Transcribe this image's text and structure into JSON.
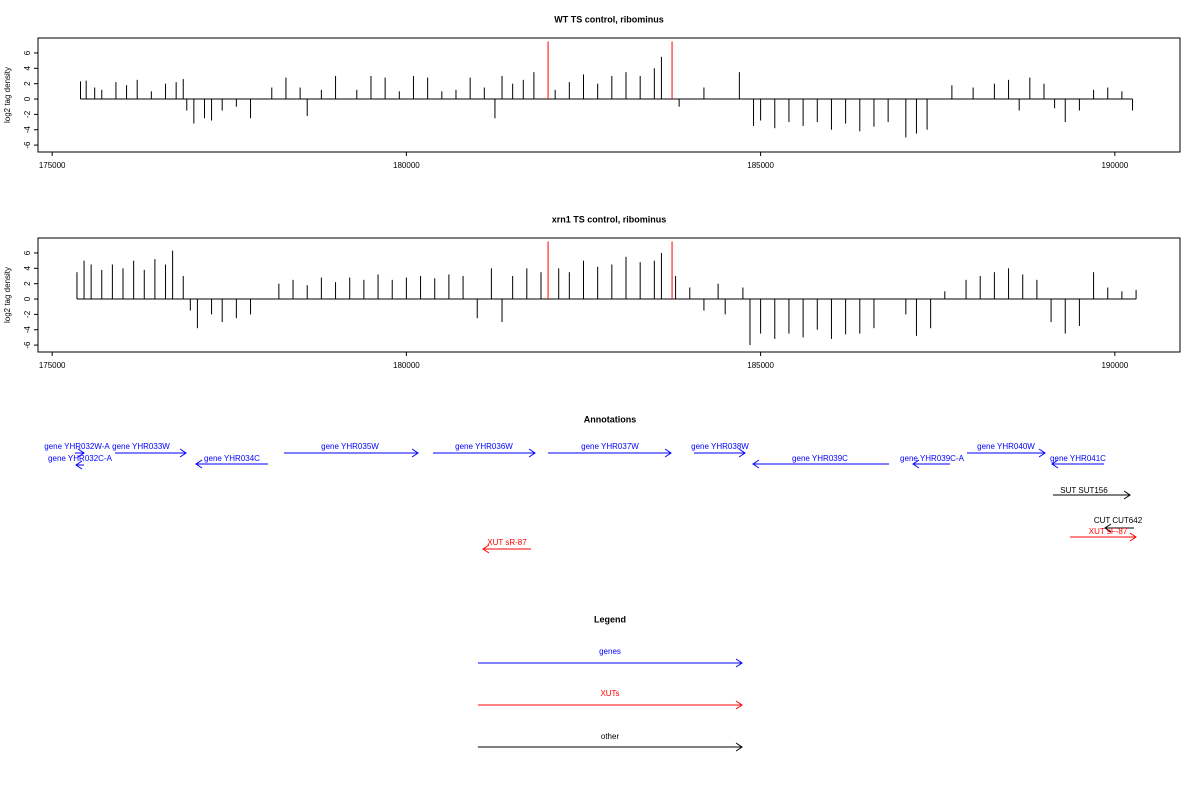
{
  "chart_data": [
    {
      "type": "bar",
      "title": "WT TS control, ribominus",
      "ylabel": "log2 tag density",
      "xlim": [
        174800,
        190920
      ],
      "xticks": [
        175000,
        180000,
        185000,
        190000
      ],
      "ylim": [
        -6.9,
        7.95
      ],
      "yticks": [
        -6,
        -4,
        -2,
        0,
        2,
        4,
        6
      ],
      "series": [
        {
          "color": "#000000",
          "x": [
            175400,
            175480,
            175600,
            175700,
            175900,
            176050,
            176200,
            176400,
            176600,
            176750,
            176850,
            176900,
            177000,
            177150,
            177250,
            177400,
            177600,
            177800,
            178100,
            178300,
            178500,
            178600,
            178800,
            179000,
            179300,
            179500,
            179700,
            179900,
            180100,
            180300,
            180500,
            180700,
            180900,
            181100,
            181250,
            181350,
            181500,
            181650,
            181800,
            182100,
            182300,
            182500,
            182700,
            182900,
            183100,
            183300,
            183500,
            183600,
            183850,
            184200,
            184700,
            184900,
            185000,
            185200,
            185400,
            185600,
            185800,
            186000,
            186200,
            186400,
            186600,
            186800,
            187050,
            187200,
            187350,
            187700,
            188000,
            188300,
            188500,
            188650,
            188800,
            189000,
            189150,
            189300,
            189500,
            189700,
            189900,
            190100,
            190250
          ],
          "values": [
            2.3,
            2.4,
            1.5,
            1.2,
            2.2,
            1.8,
            2.5,
            1,
            2,
            2.2,
            2.6,
            -1.5,
            -3.2,
            -2.5,
            -2.8,
            -1.5,
            -1,
            -2.5,
            1.5,
            2.8,
            1.5,
            -2.2,
            1.2,
            3,
            1.2,
            3,
            2.8,
            1,
            3,
            2.8,
            1,
            1.2,
            2.8,
            1.5,
            -2.5,
            3,
            2,
            2.5,
            3.5,
            1.2,
            2.2,
            3.2,
            2,
            3,
            3.5,
            3,
            4,
            5.5,
            -1,
            1.5,
            3.5,
            -3.5,
            -2.8,
            -3.8,
            -3,
            -3.5,
            -3,
            -4,
            -3.2,
            -4.2,
            -3.6,
            -3,
            -5,
            -4.5,
            -4,
            1.8,
            1.5,
            2,
            2.5,
            -1.5,
            2.8,
            2,
            -1.2,
            -3,
            -1.5,
            1.2,
            1.5,
            1,
            -1.5
          ]
        },
        {
          "color": "#ff0000",
          "x": [
            182000,
            183750
          ],
          "values": [
            7.5,
            7.5
          ]
        }
      ]
    },
    {
      "type": "bar",
      "title": "xrn1 TS control, ribominus",
      "ylabel": "log2 tag density",
      "xlim": [
        174800,
        190920
      ],
      "xticks": [
        175000,
        180000,
        185000,
        190000
      ],
      "ylim": [
        -6.9,
        7.95
      ],
      "yticks": [
        -6,
        -4,
        -2,
        0,
        2,
        4,
        6
      ],
      "series": [
        {
          "color": "#000000",
          "x": [
            175350,
            175450,
            175550,
            175700,
            175850,
            176000,
            176150,
            176300,
            176450,
            176600,
            176700,
            176850,
            176950,
            177050,
            177250,
            177400,
            177600,
            177800,
            178200,
            178400,
            178600,
            178800,
            179000,
            179200,
            179400,
            179600,
            179800,
            180000,
            180200,
            180400,
            180600,
            180800,
            181000,
            181200,
            181350,
            181500,
            181700,
            181900,
            182150,
            182300,
            182500,
            182700,
            182900,
            183100,
            183300,
            183500,
            183600,
            183800,
            184000,
            184200,
            184400,
            184500,
            184750,
            184850,
            185000,
            185200,
            185400,
            185600,
            185800,
            186000,
            186200,
            186400,
            186600,
            187050,
            187200,
            187400,
            187600,
            187900,
            188100,
            188300,
            188500,
            188700,
            188900,
            189100,
            189300,
            189500,
            189700,
            189900,
            190100,
            190300
          ],
          "values": [
            3.5,
            5,
            4.5,
            3.8,
            4.5,
            4,
            5,
            3.8,
            5.2,
            4.5,
            6.3,
            3,
            -1.5,
            -3.8,
            -2,
            -3,
            -2.5,
            -2,
            2,
            2.5,
            1.8,
            2.8,
            2.2,
            2.8,
            2.5,
            3.2,
            2.5,
            2.8,
            3,
            2.7,
            3.2,
            3,
            -2.5,
            4,
            -3,
            3,
            4,
            3.5,
            4,
            3.5,
            5,
            4.2,
            4.5,
            5.5,
            4.8,
            5,
            6,
            3,
            1.5,
            -1.5,
            2,
            -2,
            1.5,
            -6,
            -4.5,
            -5.2,
            -4.5,
            -5,
            -4,
            -5.2,
            -4.6,
            -4.5,
            -3.8,
            -2,
            -4.8,
            -3.8,
            1,
            2.5,
            3,
            3.5,
            4,
            3.2,
            2.5,
            -3,
            -4.5,
            -3.5,
            3.5,
            1.5,
            1,
            1.2
          ]
        },
        {
          "color": "#ff0000",
          "x": [
            182000,
            183750
          ],
          "values": [
            7.5,
            7.5
          ]
        }
      ]
    }
  ],
  "annotations": {
    "title": "Annotations",
    "items": [
      "gene YHR032W-A",
      "gene YHR033W",
      "gene YHR032C-A",
      "gene YHR034C",
      "gene YHR035W",
      "gene YHR036W",
      "gene YHR037W",
      "gene YHR038W",
      "gene YHR039C",
      "gene YHR039C-A",
      "gene YHR040W",
      "gene YHR041C",
      "SUT SUT156",
      "CUT CUT642",
      "XUT sF-87",
      "XUT sR-87"
    ]
  },
  "legend": {
    "title": "Legend",
    "items": [
      "genes",
      "XUTs",
      "other"
    ]
  }
}
